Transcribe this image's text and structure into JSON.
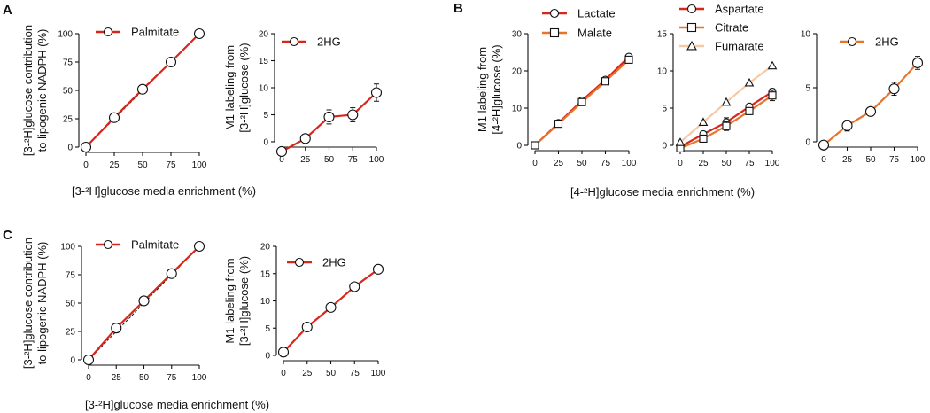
{
  "panel_letters": [
    "A",
    "B",
    "C"
  ],
  "figure_colors": {
    "red": "#d8261c",
    "orange": "#e8732a",
    "light_orange": "#f6c9a4",
    "axis": "#111111"
  },
  "shared_labels": {
    "A": "[3-²H]glucose media enrichment (%)",
    "B": "[4-²H]glucose media enrichment (%)",
    "C": "[3-²H]glucose media enrichment (%)"
  },
  "chart_data": [
    {
      "id": "A1",
      "panel": "A",
      "type": "line",
      "ylabel_lines": [
        "[3-²H]glucose contribution",
        "to lipogenic NADPH (%)"
      ],
      "xlim": [
        0,
        100
      ],
      "ylim": [
        0,
        100
      ],
      "xticks": [
        "0",
        "25",
        "50",
        "75",
        "100"
      ],
      "yticks": [
        "0",
        "25",
        "50",
        "75",
        "100"
      ],
      "identity_line": true,
      "series": [
        {
          "name": "Palmitate",
          "color": "#d8261c",
          "marker": "circle",
          "x": [
            0,
            25,
            50,
            75,
            100
          ],
          "values": [
            0,
            26,
            51,
            75,
            100
          ],
          "err": [
            0,
            1,
            1,
            3,
            0
          ]
        }
      ]
    },
    {
      "id": "A2",
      "panel": "A",
      "type": "line",
      "ylabel_lines": [
        "M1 labeling from",
        "[3-²H]glucose (%)"
      ],
      "xlim": [
        0,
        100
      ],
      "ylim": [
        0,
        20
      ],
      "xticks": [
        "0",
        "25",
        "50",
        "75",
        "100"
      ],
      "yticks": [
        "0",
        "5",
        "10",
        "15",
        "20"
      ],
      "series": [
        {
          "name": "2HG",
          "color": "#d8261c",
          "marker": "circle",
          "x": [
            0,
            25,
            50,
            75,
            100
          ],
          "values": [
            -1.8,
            0.6,
            4.6,
            5.0,
            9.1
          ],
          "err": [
            0.3,
            0.3,
            1.3,
            1.3,
            1.6
          ]
        }
      ]
    },
    {
      "id": "B1",
      "panel": "B",
      "type": "line",
      "ylabel_lines": [
        "M1 labeling from",
        "[4-²H]glucose (%)"
      ],
      "xlim": [
        0,
        100
      ],
      "ylim": [
        0,
        30
      ],
      "xticks": [
        "0",
        "25",
        "50",
        "75",
        "100"
      ],
      "yticks": [
        "0",
        "10",
        "20",
        "30"
      ],
      "series": [
        {
          "name": "Lactate",
          "color": "#d8261c",
          "marker": "circle",
          "x": [
            0,
            25,
            50,
            75,
            100
          ],
          "values": [
            0,
            6,
            12,
            17.6,
            23.8
          ],
          "err": [
            0,
            0.3,
            0.4,
            0.5,
            0.5
          ]
        },
        {
          "name": "Malate",
          "color": "#e8732a",
          "marker": "square",
          "x": [
            0,
            25,
            50,
            75,
            100
          ],
          "values": [
            0,
            5.8,
            11.6,
            17.2,
            23
          ],
          "err": [
            0,
            0.3,
            0.4,
            0.5,
            0.5
          ]
        }
      ]
    },
    {
      "id": "B2",
      "panel": "B",
      "type": "line",
      "xlim": [
        0,
        100
      ],
      "ylim": [
        0,
        15
      ],
      "xticks": [
        "0",
        "25",
        "50",
        "75",
        "100"
      ],
      "yticks": [
        "0",
        "5",
        "10",
        "15"
      ],
      "series": [
        {
          "name": "Aspartate",
          "color": "#d8261c",
          "marker": "circle",
          "x": [
            0,
            25,
            50,
            75,
            100
          ],
          "values": [
            -0.2,
            1.5,
            3.1,
            5.2,
            7.2
          ],
          "err": [
            0.2,
            0.3,
            0.6,
            0.3,
            0.4
          ]
        },
        {
          "name": "Citrate",
          "color": "#e8732a",
          "marker": "square",
          "x": [
            0,
            25,
            50,
            75,
            100
          ],
          "values": [
            -0.4,
            0.9,
            2.6,
            4.6,
            6.7
          ],
          "err": [
            0.2,
            0.3,
            0.6,
            0.4,
            0.7
          ]
        },
        {
          "name": "Fumarate",
          "color": "#f6c9a4",
          "marker": "triangle",
          "x": [
            0,
            25,
            50,
            75,
            100
          ],
          "values": [
            0.4,
            3.1,
            5.8,
            8.4,
            10.7
          ],
          "err": [
            0,
            0,
            0,
            0,
            0
          ]
        }
      ]
    },
    {
      "id": "B3",
      "panel": "B",
      "type": "line",
      "xlim": [
        0,
        100
      ],
      "ylim": [
        0,
        10
      ],
      "xticks": [
        "0",
        "25",
        "50",
        "75",
        "100"
      ],
      "yticks": [
        "0",
        "5",
        "10"
      ],
      "series": [
        {
          "name": "2HG",
          "color": "#e8732a",
          "marker": "circle",
          "x": [
            0,
            25,
            50,
            75,
            100
          ],
          "values": [
            -0.3,
            1.5,
            2.8,
            4.9,
            7.3
          ],
          "err": [
            0.3,
            0.5,
            0.3,
            0.6,
            0.6
          ]
        }
      ]
    },
    {
      "id": "C1",
      "panel": "C",
      "type": "line",
      "ylabel_lines": [
        "[3-²H]glucose contribution",
        "to lipogenic NADPH (%)"
      ],
      "xlim": [
        0,
        100
      ],
      "ylim": [
        0,
        100
      ],
      "xticks": [
        "0",
        "25",
        "50",
        "75",
        "100"
      ],
      "yticks": [
        "0",
        "25",
        "50",
        "75",
        "100"
      ],
      "identity_line": true,
      "series": [
        {
          "name": "Palmitate",
          "color": "#d8261c",
          "marker": "circle",
          "x": [
            0,
            25,
            50,
            75,
            100
          ],
          "values": [
            0,
            28,
            52,
            76,
            100
          ],
          "err": [
            0,
            0,
            0,
            0,
            0
          ]
        }
      ]
    },
    {
      "id": "C2",
      "panel": "C",
      "type": "line",
      "ylabel_lines": [
        "M1 labeling from",
        "[3-²H]glucose (%)"
      ],
      "xlim": [
        0,
        100
      ],
      "ylim": [
        0,
        20
      ],
      "xticks": [
        "0",
        "25",
        "50",
        "75",
        "100"
      ],
      "yticks": [
        "0",
        "5",
        "10",
        "15",
        "20"
      ],
      "series": [
        {
          "name": "2HG",
          "color": "#d8261c",
          "marker": "circle",
          "x": [
            0,
            25,
            50,
            75,
            100
          ],
          "values": [
            0.6,
            5.2,
            8.8,
            12.6,
            15.8
          ],
          "err": [
            0,
            0,
            0,
            0,
            0
          ]
        }
      ]
    }
  ]
}
